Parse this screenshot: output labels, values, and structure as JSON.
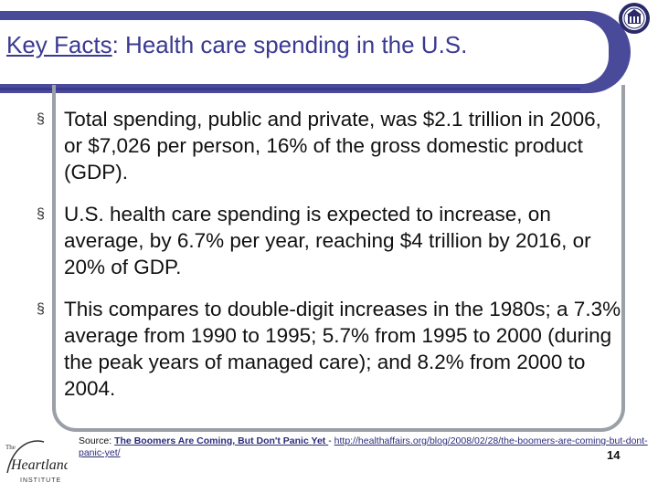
{
  "title": {
    "lead": "Key Facts",
    "rest": ": Health care spending in the U.S."
  },
  "bullets": [
    {
      "text": "Total spending, public and private, was $2.1 trillion in 2006, or $7,026 per person, 16% of the gross domestic product (GDP)."
    },
    {
      "text": "U.S. health care spending is expected to increase, on average, by 6.7% per year, reaching $4 trillion by 2016, or 20% of GDP."
    },
    {
      "text": "This compares to double-digit increases in the 1980s; a 7.3% average from 1990 to 1995; 5.7% from 1995 to 2000 (during the peak years of managed care); and 8.2% from 2000 to 2004."
    }
  ],
  "bullet_mark": "§",
  "source": {
    "label": "Source: ",
    "link_text": "The Boomers Are Coming, But Don't Panic Yet ",
    "separator": "- ",
    "url": "http://healthaffairs.org/blog/2008/02/28/the-boomers-are-coming-but-dont-panic-yet/"
  },
  "page_number": "14",
  "logo": {
    "text": "The Heartland INSTITUTE"
  },
  "colors": {
    "title": "#3a3a92",
    "title_bar": "#4a4a9a",
    "frame": "#9aa0a6"
  }
}
